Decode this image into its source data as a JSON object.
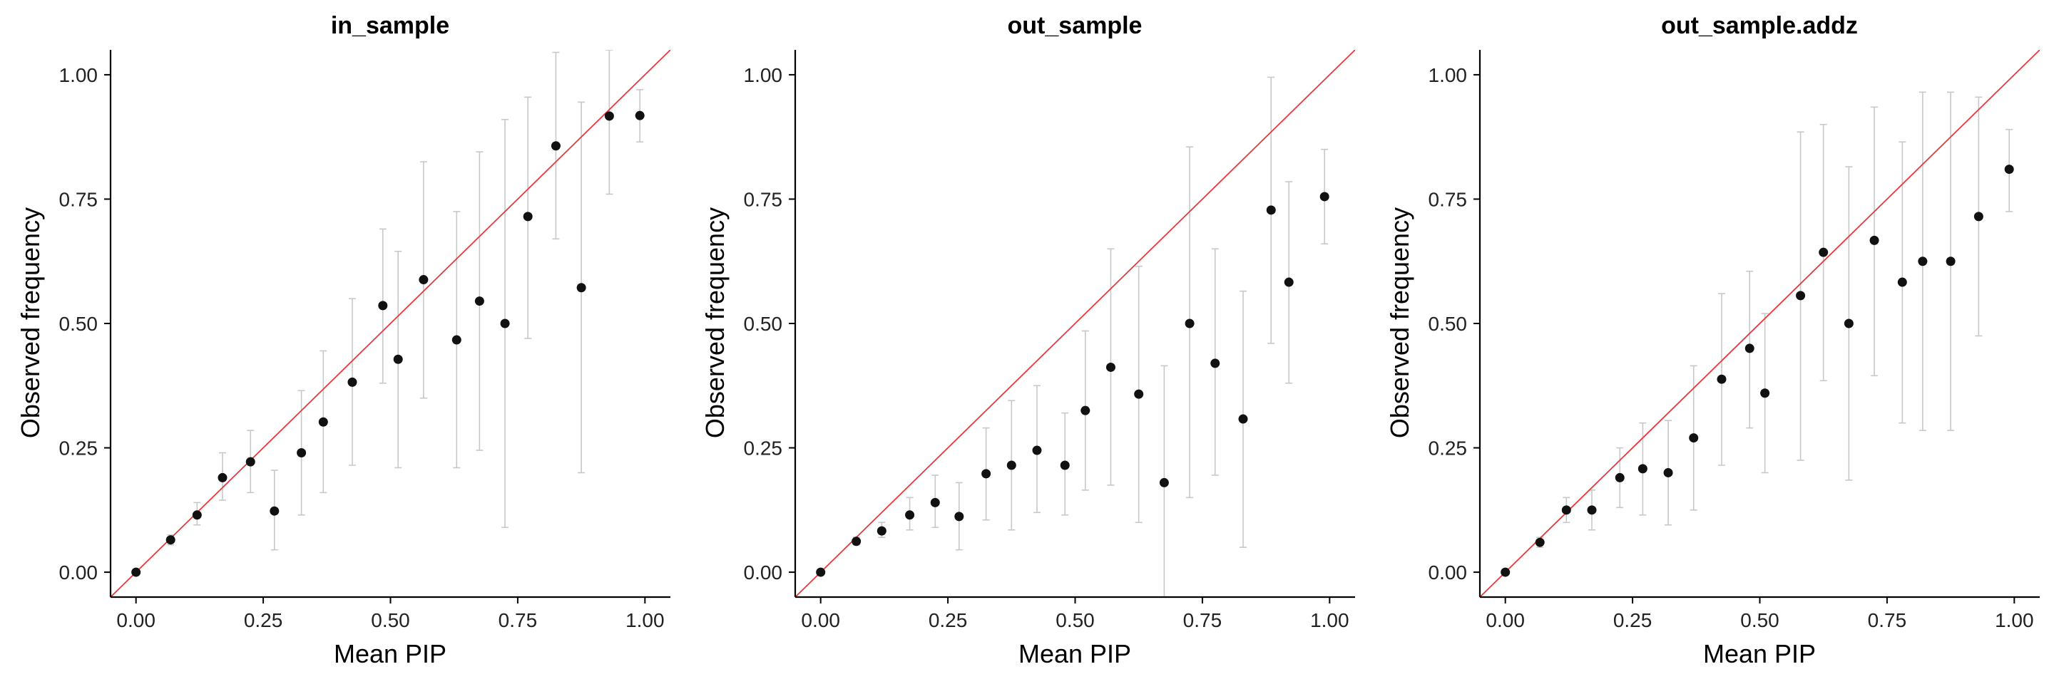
{
  "figure": {
    "xlabel": "Mean PIP",
    "ylabel": "Observed frequency",
    "colors": {
      "reference_line": "#e8383d",
      "points": "#111111",
      "error_bars": "#c8c8c8",
      "axis": "#000000"
    }
  },
  "chart_data": [
    {
      "type": "scatter",
      "title": "in_sample",
      "xlabel": "Mean PIP",
      "ylabel": "Observed frequency",
      "xlim": [
        -0.05,
        1.05
      ],
      "ylim": [
        -0.05,
        1.05
      ],
      "xticks": [
        "0.00",
        "0.25",
        "0.50",
        "0.75",
        "1.00"
      ],
      "yticks": [
        "0.00",
        "0.25",
        "0.50",
        "0.75",
        "1.00"
      ],
      "reference_line": "y = x",
      "points": [
        {
          "x": 0.0,
          "y": 0.0,
          "lo": null,
          "hi": null
        },
        {
          "x": 0.068,
          "y": 0.065,
          "lo": 0.055,
          "hi": 0.075
        },
        {
          "x": 0.12,
          "y": 0.115,
          "lo": 0.095,
          "hi": 0.14
        },
        {
          "x": 0.17,
          "y": 0.19,
          "lo": 0.145,
          "hi": 0.24
        },
        {
          "x": 0.225,
          "y": 0.222,
          "lo": 0.16,
          "hi": 0.285
        },
        {
          "x": 0.272,
          "y": 0.123,
          "lo": 0.045,
          "hi": 0.205
        },
        {
          "x": 0.325,
          "y": 0.24,
          "lo": 0.115,
          "hi": 0.365
        },
        {
          "x": 0.368,
          "y": 0.302,
          "lo": 0.16,
          "hi": 0.445
        },
        {
          "x": 0.425,
          "y": 0.382,
          "lo": 0.215,
          "hi": 0.55
        },
        {
          "x": 0.485,
          "y": 0.536,
          "lo": 0.38,
          "hi": 0.69
        },
        {
          "x": 0.515,
          "y": 0.428,
          "lo": 0.21,
          "hi": 0.645
        },
        {
          "x": 0.565,
          "y": 0.588,
          "lo": 0.35,
          "hi": 0.825
        },
        {
          "x": 0.63,
          "y": 0.467,
          "lo": 0.21,
          "hi": 0.725
        },
        {
          "x": 0.675,
          "y": 0.545,
          "lo": 0.245,
          "hi": 0.845
        },
        {
          "x": 0.725,
          "y": 0.5,
          "lo": 0.09,
          "hi": 0.91
        },
        {
          "x": 0.77,
          "y": 0.715,
          "lo": 0.47,
          "hi": 0.955
        },
        {
          "x": 0.825,
          "y": 0.857,
          "lo": 0.67,
          "hi": 1.045
        },
        {
          "x": 0.875,
          "y": 0.572,
          "lo": 0.2,
          "hi": 0.945
        },
        {
          "x": 0.93,
          "y": 0.917,
          "lo": 0.76,
          "hi": 1.05
        },
        {
          "x": 0.99,
          "y": 0.918,
          "lo": 0.865,
          "hi": 0.97
        }
      ]
    },
    {
      "type": "scatter",
      "title": "out_sample",
      "xlabel": "Mean PIP",
      "ylabel": "Observed frequency",
      "xlim": [
        -0.05,
        1.05
      ],
      "ylim": [
        -0.05,
        1.05
      ],
      "xticks": [
        "0.00",
        "0.25",
        "0.50",
        "0.75",
        "1.00"
      ],
      "yticks": [
        "0.00",
        "0.25",
        "0.50",
        "0.75",
        "1.00"
      ],
      "reference_line": "y = x",
      "points": [
        {
          "x": 0.0,
          "y": 0.0,
          "lo": null,
          "hi": null
        },
        {
          "x": 0.07,
          "y": 0.062,
          "lo": 0.055,
          "hi": 0.07
        },
        {
          "x": 0.12,
          "y": 0.083,
          "lo": 0.07,
          "hi": 0.1
        },
        {
          "x": 0.175,
          "y": 0.115,
          "lo": 0.085,
          "hi": 0.15
        },
        {
          "x": 0.225,
          "y": 0.14,
          "lo": 0.09,
          "hi": 0.195
        },
        {
          "x": 0.272,
          "y": 0.112,
          "lo": 0.045,
          "hi": 0.18
        },
        {
          "x": 0.325,
          "y": 0.198,
          "lo": 0.105,
          "hi": 0.29
        },
        {
          "x": 0.375,
          "y": 0.215,
          "lo": 0.085,
          "hi": 0.345
        },
        {
          "x": 0.425,
          "y": 0.245,
          "lo": 0.12,
          "hi": 0.375
        },
        {
          "x": 0.48,
          "y": 0.215,
          "lo": 0.115,
          "hi": 0.32
        },
        {
          "x": 0.52,
          "y": 0.325,
          "lo": 0.165,
          "hi": 0.485
        },
        {
          "x": 0.57,
          "y": 0.412,
          "lo": 0.175,
          "hi": 0.65
        },
        {
          "x": 0.625,
          "y": 0.358,
          "lo": 0.1,
          "hi": 0.615
        },
        {
          "x": 0.675,
          "y": 0.18,
          "lo": -0.05,
          "hi": 0.415
        },
        {
          "x": 0.725,
          "y": 0.5,
          "lo": 0.15,
          "hi": 0.855
        },
        {
          "x": 0.775,
          "y": 0.42,
          "lo": 0.195,
          "hi": 0.65
        },
        {
          "x": 0.83,
          "y": 0.308,
          "lo": 0.05,
          "hi": 0.565
        },
        {
          "x": 0.885,
          "y": 0.728,
          "lo": 0.46,
          "hi": 0.995
        },
        {
          "x": 0.92,
          "y": 0.583,
          "lo": 0.38,
          "hi": 0.785
        },
        {
          "x": 0.99,
          "y": 0.755,
          "lo": 0.66,
          "hi": 0.85
        }
      ]
    },
    {
      "type": "scatter",
      "title": "out_sample.addz",
      "xlabel": "Mean PIP",
      "ylabel": "Observed frequency",
      "xlim": [
        -0.05,
        1.05
      ],
      "ylim": [
        -0.05,
        1.05
      ],
      "xticks": [
        "0.00",
        "0.25",
        "0.50",
        "0.75",
        "1.00"
      ],
      "yticks": [
        "0.00",
        "0.25",
        "0.50",
        "0.75",
        "1.00"
      ],
      "reference_line": "y = x",
      "points": [
        {
          "x": 0.0,
          "y": 0.0,
          "lo": null,
          "hi": null
        },
        {
          "x": 0.068,
          "y": 0.06,
          "lo": 0.05,
          "hi": 0.07
        },
        {
          "x": 0.12,
          "y": 0.125,
          "lo": 0.1,
          "hi": 0.15
        },
        {
          "x": 0.17,
          "y": 0.125,
          "lo": 0.085,
          "hi": 0.165
        },
        {
          "x": 0.225,
          "y": 0.19,
          "lo": 0.13,
          "hi": 0.25
        },
        {
          "x": 0.27,
          "y": 0.208,
          "lo": 0.115,
          "hi": 0.3
        },
        {
          "x": 0.32,
          "y": 0.2,
          "lo": 0.095,
          "hi": 0.305
        },
        {
          "x": 0.37,
          "y": 0.27,
          "lo": 0.125,
          "hi": 0.415
        },
        {
          "x": 0.425,
          "y": 0.388,
          "lo": 0.215,
          "hi": 0.56
        },
        {
          "x": 0.48,
          "y": 0.45,
          "lo": 0.29,
          "hi": 0.605
        },
        {
          "x": 0.51,
          "y": 0.36,
          "lo": 0.2,
          "hi": 0.52
        },
        {
          "x": 0.58,
          "y": 0.556,
          "lo": 0.225,
          "hi": 0.885
        },
        {
          "x": 0.625,
          "y": 0.643,
          "lo": 0.385,
          "hi": 0.9
        },
        {
          "x": 0.675,
          "y": 0.5,
          "lo": 0.185,
          "hi": 0.815
        },
        {
          "x": 0.725,
          "y": 0.667,
          "lo": 0.395,
          "hi": 0.935
        },
        {
          "x": 0.78,
          "y": 0.583,
          "lo": 0.3,
          "hi": 0.865
        },
        {
          "x": 0.82,
          "y": 0.625,
          "lo": 0.285,
          "hi": 0.965
        },
        {
          "x": 0.875,
          "y": 0.625,
          "lo": 0.285,
          "hi": 0.965
        },
        {
          "x": 0.93,
          "y": 0.715,
          "lo": 0.475,
          "hi": 0.955
        },
        {
          "x": 0.99,
          "y": 0.81,
          "lo": 0.725,
          "hi": 0.89
        }
      ]
    }
  ]
}
